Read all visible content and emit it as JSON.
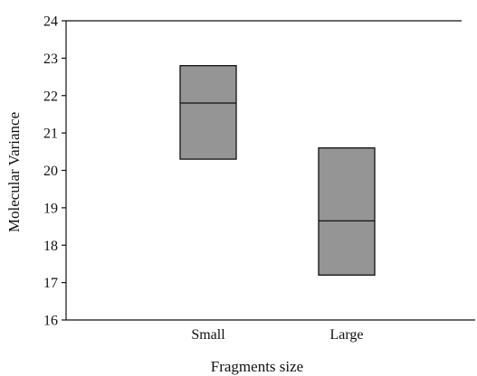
{
  "chart_data": {
    "type": "box",
    "xlabel": "Fragments size",
    "ylabel": "Molecular Variance",
    "categories": [
      "Small",
      "Large"
    ],
    "ylim": [
      16,
      24
    ],
    "yticks": [
      "16",
      "17",
      "18",
      "19",
      "20",
      "21",
      "22",
      "23",
      "24"
    ],
    "boxes": [
      {
        "category": "Small",
        "low": 20.3,
        "median": 21.8,
        "high": 22.8
      },
      {
        "category": "Large",
        "low": 17.2,
        "median": 18.65,
        "high": 20.6
      }
    ],
    "grid": false,
    "box_fill": "#959595",
    "box_stroke": "#111111",
    "axis_color": "#111111"
  }
}
